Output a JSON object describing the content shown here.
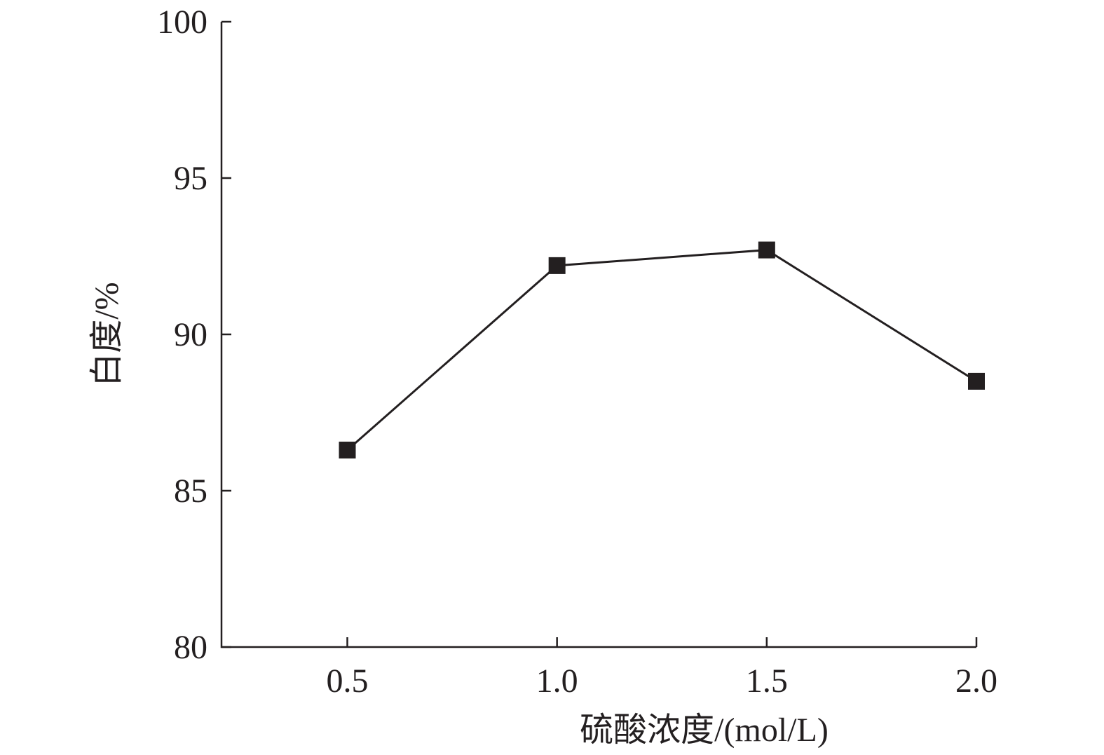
{
  "chart_data": {
    "type": "line",
    "xlabel": "硫酸浓度/(mol/L)",
    "ylabel": "白度/%",
    "x": [
      0.5,
      1.0,
      1.5,
      2.0
    ],
    "x_tick_labels": [
      "0.5",
      "1.0",
      "1.5",
      "2.0"
    ],
    "y_tick_values": [
      80,
      85,
      90,
      95,
      100
    ],
    "y_tick_labels": [
      "80",
      "85",
      "90",
      "95",
      "100"
    ],
    "ylim": [
      80,
      100
    ],
    "xlim": [
      0.2,
      2.0
    ],
    "series": [
      {
        "values": [
          86.3,
          92.2,
          92.7,
          88.5
        ],
        "marker": "square",
        "color": "#231f20"
      }
    ],
    "grid": false
  }
}
